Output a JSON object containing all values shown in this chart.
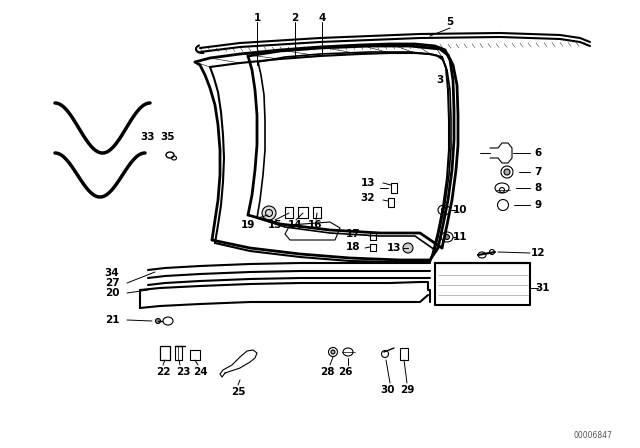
{
  "bg_color": "#ffffff",
  "line_color": "#000000",
  "fig_width": 6.4,
  "fig_height": 4.48,
  "dpi": 100,
  "watermark": "00006847",
  "label_fs": 7,
  "label_bold": true
}
